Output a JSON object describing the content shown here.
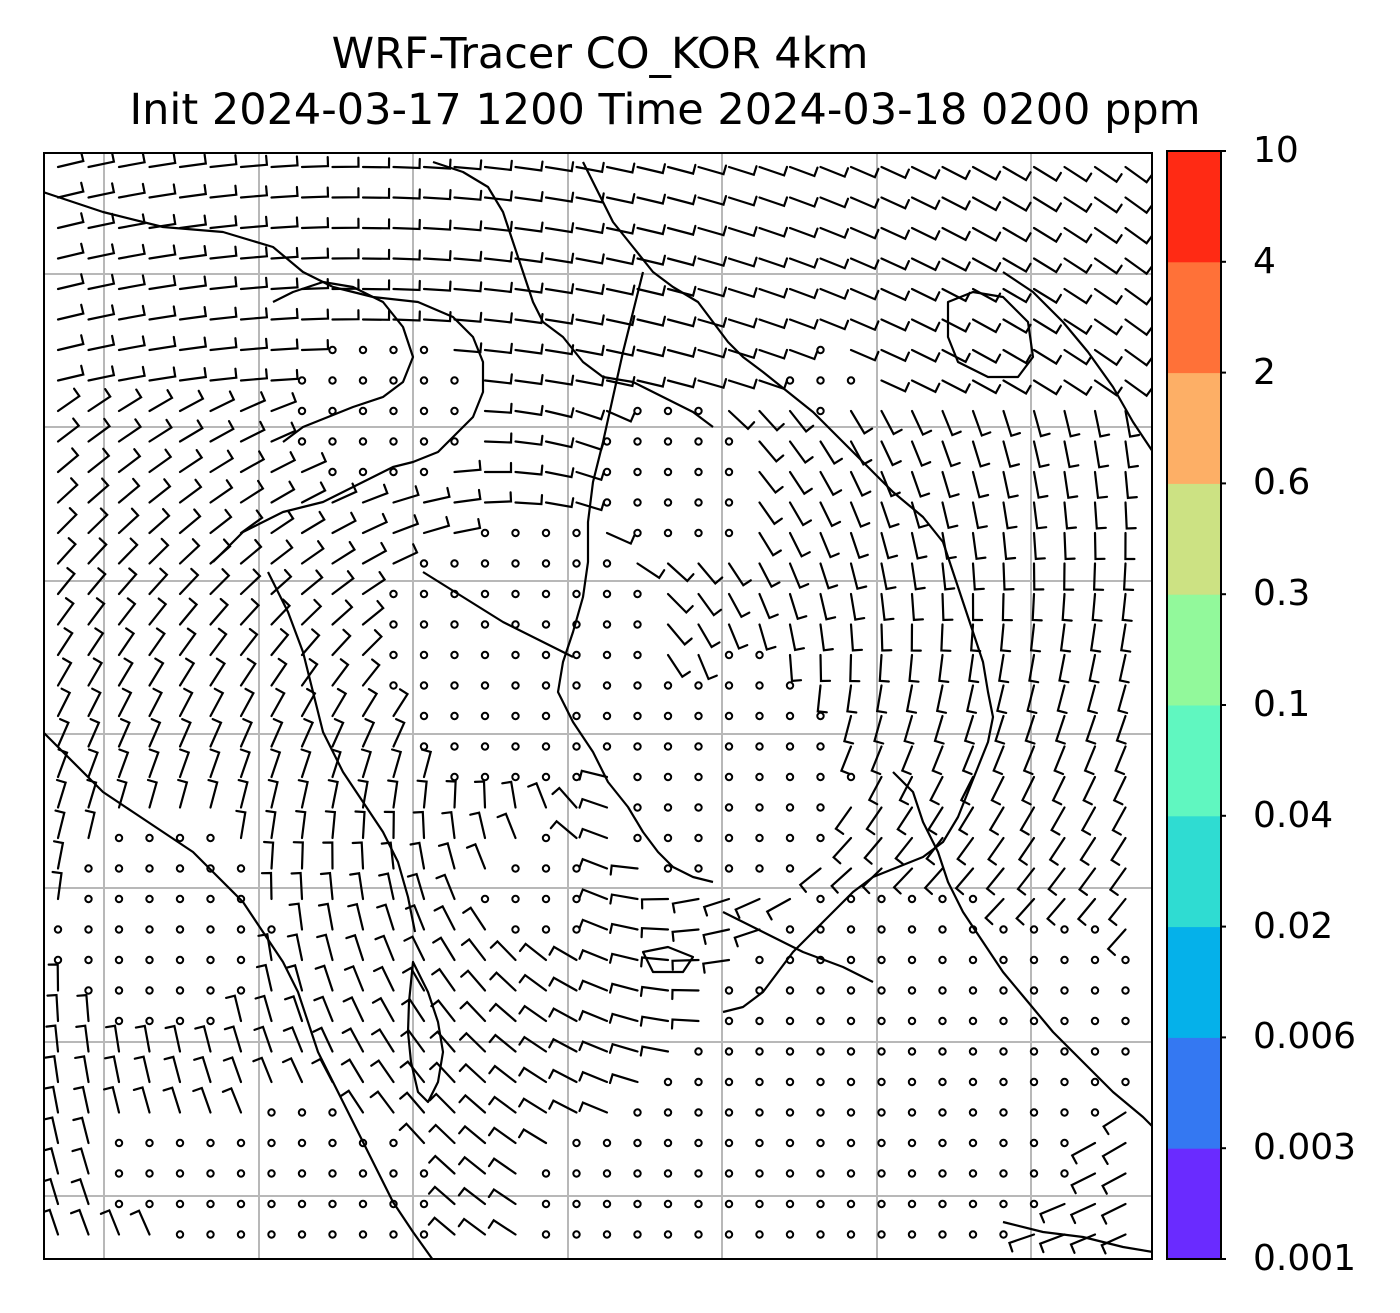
{
  "title": {
    "line1": "WRF-Tracer CO_KOR 4km",
    "line2": "Init 2024-03-17 1200 Time 2024-03-18 0200 ppm"
  },
  "colorbar": {
    "levels": [
      "0.001",
      "0.003",
      "0.006",
      "0.02",
      "0.04",
      "0.1",
      "0.3",
      "0.6",
      "2",
      "4",
      "10"
    ],
    "colors": [
      "#6a2bff",
      "#3478f2",
      "#05b1ea",
      "#2fdcd2",
      "#60f7c0",
      "#92f99b",
      "#cce283",
      "#fdaf66",
      "#ff7138",
      "#ff2a14"
    ]
  },
  "map": {
    "gridline_color": "#b8b8b8",
    "coast_color": "#000000",
    "barb_color": "#000000"
  }
}
